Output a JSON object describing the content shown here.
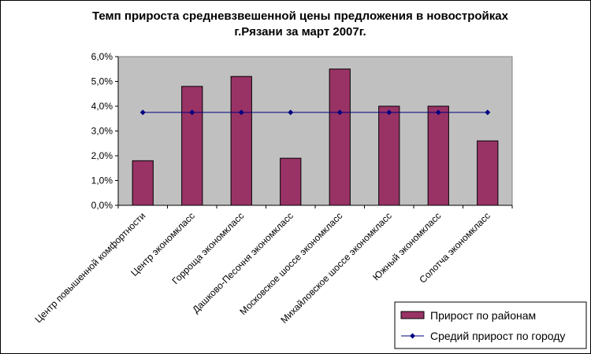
{
  "chart_data": {
    "type": "bar",
    "title_lines": [
      "Темп прироста средневзвешенной цены предложения в новостройках",
      "г.Рязани за март 2007г."
    ],
    "categories": [
      "Центр повышенной комфортности",
      "Центр экономкласс",
      "Горроща экономкласс",
      "Дашково-Песочня экономкласс",
      "Московское шоссе экономкласс",
      "Михайловское шоссе экономкласс",
      "Южный экономкласс",
      "Солотча экономкласс"
    ],
    "series": [
      {
        "name": "Прирост по районам",
        "type": "bar",
        "color": "#993366",
        "values": [
          1.8,
          4.8,
          5.2,
          1.9,
          5.5,
          4.0,
          4.0,
          2.6
        ]
      },
      {
        "name": "Средий прирост по городу",
        "type": "line",
        "color": "#000080",
        "values": [
          3.75,
          3.75,
          3.75,
          3.75,
          3.75,
          3.75,
          3.75,
          3.75
        ]
      }
    ],
    "yticks": [
      "0,0%",
      "1,0%",
      "2,0%",
      "3,0%",
      "4,0%",
      "5,0%",
      "6,0%"
    ],
    "ylim": [
      0,
      6
    ],
    "plot_background": "#c0c0c0",
    "grid": false,
    "legend_position": "bottom-right"
  }
}
